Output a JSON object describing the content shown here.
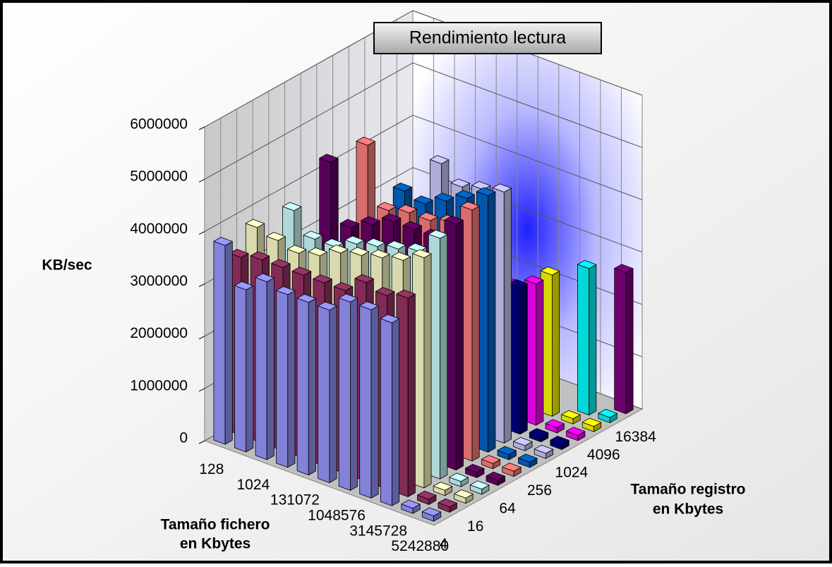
{
  "chart_data": {
    "type": "bar3d",
    "title": "Rendimiento lectura",
    "y_label": "KB/sec",
    "x_label": [
      "Tamaño fichero",
      "en Kbytes"
    ],
    "z_label": [
      "Tamaño registro",
      "en Kbytes"
    ],
    "categories": [
      "128",
      null,
      "1024",
      null,
      "131072",
      null,
      "1048576",
      null,
      "3145728",
      null,
      "5242880"
    ],
    "series": [
      {
        "name": "4",
        "color": "#9999ff",
        "values": [
          3800000,
          3100000,
          3400000,
          3300000,
          3300000,
          3300000,
          3600000,
          3600000,
          3500000,
          100000,
          100000
        ]
      },
      {
        "name": null,
        "color": "#993366",
        "values": [
          3400000,
          3500000,
          3500000,
          3500000,
          3500000,
          3500000,
          3800000,
          3700000,
          3800000,
          100000,
          100000
        ]
      },
      {
        "name": "16",
        "color": "#ffffcc",
        "values": [
          3800000,
          3700000,
          3600000,
          3700000,
          3900000,
          4000000,
          4100000,
          4200000,
          4400000,
          100000,
          100000
        ]
      },
      {
        "name": null,
        "color": "#ccffff",
        "values": [
          null,
          4100000,
          3700000,
          3700000,
          3900000,
          4000000,
          4100000,
          4200000,
          4600000,
          100000,
          100000
        ]
      },
      {
        "name": "64",
        "color": "#660066",
        "values": [
          null,
          null,
          5000000,
          3900000,
          4100000,
          4300000,
          4300000,
          4300000,
          4700000,
          100000,
          100000
        ]
      },
      {
        "name": null,
        "color": "#ff8080",
        "values": [
          null,
          null,
          null,
          5300000,
          4200000,
          4300000,
          4300000,
          4400000,
          4800000,
          100000,
          100000
        ]
      },
      {
        "name": "256",
        "color": "#0066cc",
        "values": [
          null,
          null,
          null,
          null,
          4400000,
          4300000,
          4500000,
          4700000,
          4900000,
          100000,
          100000
        ]
      },
      {
        "name": null,
        "color": "#ccccff",
        "values": [
          null,
          null,
          null,
          null,
          null,
          4900000,
          4600000,
          4700000,
          4800000,
          100000,
          100000
        ]
      },
      {
        "name": "1024",
        "color": "#000080",
        "values": [
          null,
          null,
          null,
          null,
          null,
          null,
          2700000,
          2700000,
          2800000,
          100000,
          100000
        ]
      },
      {
        "name": null,
        "color": "#ff00ff",
        "values": [
          null,
          null,
          null,
          null,
          null,
          null,
          null,
          2500000,
          2700000,
          100000,
          100000
        ]
      },
      {
        "name": "4096",
        "color": "#ffff00",
        "values": [
          null,
          null,
          null,
          null,
          null,
          null,
          null,
          null,
          2700000,
          100000,
          100000
        ]
      },
      {
        "name": null,
        "color": "#00ffff",
        "values": [
          null,
          null,
          null,
          null,
          null,
          null,
          null,
          null,
          null,
          2800000,
          100000
        ]
      },
      {
        "name": "16384",
        "color": "#800080",
        "values": [
          null,
          null,
          null,
          null,
          null,
          null,
          null,
          null,
          null,
          null,
          2700000
        ]
      }
    ],
    "ylim": [
      0,
      6000000
    ],
    "yticks": [
      0,
      1000000,
      2000000,
      3000000,
      4000000,
      5000000,
      6000000
    ],
    "grid": true
  }
}
